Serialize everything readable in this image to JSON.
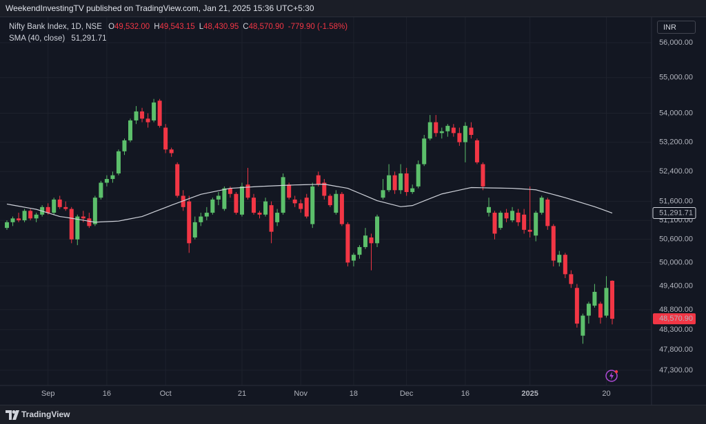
{
  "header": {
    "publisher": "WeekendInvestingTV published on TradingView.com, Jan 21, 2025 15:36 UTC+5:30"
  },
  "legend": {
    "fields": [
      {
        "key": "O",
        "value": "49,532.00"
      },
      {
        "key": "H",
        "value": "49,543.15"
      },
      {
        "key": "L",
        "value": "48,430.95"
      },
      {
        "key": "C",
        "value": "48,570.90"
      }
    ],
    "change": "-779.90 (-1.58%)"
  },
  "currency": "INR",
  "footer": {
    "brand": "TradingView"
  },
  "chart_data": {
    "type": "candlestick",
    "categories": [
      null,
      null,
      null,
      null,
      null,
      null,
      null,
      "Sep",
      null,
      null,
      null,
      null,
      null,
      null,
      null,
      null,
      null,
      "16",
      null,
      null,
      null,
      null,
      null,
      null,
      null,
      null,
      null,
      "Oct",
      null,
      null,
      null,
      null,
      null,
      null,
      null,
      null,
      null,
      null,
      null,
      null,
      "21",
      null,
      null,
      null,
      null,
      null,
      null,
      null,
      null,
      null,
      "Nov",
      null,
      null,
      null,
      null,
      null,
      null,
      null,
      null,
      "18",
      null,
      null,
      null,
      null,
      null,
      null,
      null,
      null,
      "Dec",
      null,
      null,
      null,
      null,
      null,
      null,
      null,
      null,
      null,
      "16",
      null,
      null,
      null,
      null,
      null,
      null,
      null,
      null,
      null,
      null,
      "2025",
      null,
      null,
      null,
      null,
      null,
      null,
      null,
      null,
      null,
      null,
      null,
      null,
      "20",
      null
    ],
    "series": [
      {
        "name": "Nifty Bank Index, 1D, NSE",
        "up_color": "#5cbf6b",
        "down_color": "#f23645",
        "last_label": "48,570.90",
        "open": [
          50900,
          51050,
          51150,
          51100,
          51350,
          51150,
          51250,
          51450,
          51300,
          51650,
          51450,
          51400,
          50600,
          51200,
          51150,
          51000,
          51700,
          52100,
          52200,
          52350,
          52950,
          53250,
          53800,
          54050,
          53850,
          53800,
          54350,
          53600,
          53000,
          52600,
          51750,
          51600,
          50650,
          51050,
          51200,
          51300,
          51650,
          51400,
          51950,
          51800,
          51250,
          52050,
          51700,
          51300,
          51250,
          51500,
          51050,
          51300,
          52050,
          51650,
          51550,
          51700,
          51000,
          52300,
          52100,
          51750,
          51300,
          51800,
          51000,
          50050,
          50200,
          50400,
          50650,
          50500,
          51700,
          51900,
          52300,
          51900,
          52350,
          51850,
          52000,
          52600,
          53300,
          53750,
          53450,
          53500,
          53600,
          53450,
          53200,
          53600,
          53250,
          52600,
          51300,
          51300,
          50900,
          51300,
          51100,
          51300,
          51250,
          50850,
          50700,
          51300,
          51650,
          50950,
          50000,
          50200,
          49700,
          49350,
          48150,
          48650,
          48900,
          48950,
          48650,
          49532
        ],
        "high": [
          51100,
          51200,
          51300,
          51400,
          51400,
          51300,
          51500,
          51550,
          51700,
          51750,
          51600,
          51450,
          51250,
          51350,
          51300,
          51750,
          52150,
          52300,
          52400,
          53000,
          53300,
          53850,
          54200,
          54150,
          54000,
          54400,
          54400,
          53700,
          53050,
          52650,
          51900,
          51750,
          51200,
          51300,
          51450,
          51700,
          51850,
          52000,
          52000,
          51850,
          52100,
          52500,
          51800,
          51350,
          51700,
          51600,
          51400,
          52350,
          52100,
          51750,
          51650,
          51800,
          52100,
          52400,
          52200,
          51800,
          51900,
          51850,
          51050,
          50250,
          50450,
          50900,
          50750,
          51250,
          52200,
          52600,
          52400,
          52600,
          52500,
          52050,
          52700,
          53400,
          53950,
          53950,
          53600,
          53700,
          53700,
          53600,
          53750,
          53750,
          53300,
          52650,
          51700,
          51350,
          51350,
          51400,
          51450,
          51400,
          51400,
          52000,
          51350,
          51750,
          51700,
          51000,
          50300,
          50250,
          49800,
          49450,
          48700,
          49000,
          49450,
          49000,
          49650,
          49543.15
        ],
        "low": [
          50850,
          50950,
          51050,
          51050,
          51100,
          51050,
          51200,
          51250,
          51250,
          51400,
          51350,
          50500,
          50450,
          51050,
          50900,
          50950,
          51650,
          52000,
          52100,
          52300,
          52850,
          53200,
          53700,
          53750,
          53600,
          53750,
          53600,
          52900,
          52800,
          51700,
          51350,
          50250,
          50600,
          50950,
          51100,
          51250,
          51500,
          51350,
          51700,
          51250,
          51200,
          51650,
          51250,
          51150,
          51200,
          50500,
          50950,
          51250,
          51650,
          51450,
          51300,
          51150,
          50900,
          52000,
          51650,
          51450,
          51250,
          50950,
          49900,
          49900,
          50100,
          50350,
          49800,
          50400,
          51650,
          51850,
          51800,
          51800,
          51750,
          51800,
          51950,
          52550,
          53250,
          53350,
          53300,
          53350,
          53350,
          53100,
          52650,
          53300,
          52600,
          51900,
          51200,
          50600,
          50850,
          51050,
          51050,
          50950,
          50750,
          50650,
          50550,
          51250,
          50850,
          49900,
          49900,
          49600,
          49350,
          48350,
          47950,
          48450,
          48850,
          48450,
          48600,
          48430.95
        ],
        "close": [
          51050,
          51150,
          51100,
          51350,
          51150,
          51250,
          51450,
          51300,
          51650,
          51450,
          51400,
          50600,
          51200,
          51150,
          50950,
          51700,
          52100,
          52200,
          52300,
          52950,
          53250,
          53800,
          54050,
          53850,
          53750,
          54300,
          53650,
          53000,
          52900,
          51750,
          51450,
          50500,
          51050,
          51200,
          51300,
          51650,
          51750,
          51950,
          51800,
          51300,
          52000,
          51700,
          51300,
          51250,
          51600,
          50800,
          51300,
          52250,
          51700,
          51550,
          51400,
          51200,
          52000,
          52050,
          51750,
          51500,
          51800,
          51000,
          50000,
          50200,
          50400,
          50700,
          50500,
          51200,
          51900,
          52300,
          51900,
          52350,
          51850,
          51950,
          52600,
          53300,
          53750,
          53450,
          53500,
          53650,
          53450,
          53200,
          53650,
          53400,
          52650,
          52000,
          51450,
          50750,
          51300,
          51150,
          51350,
          51050,
          50850,
          50800,
          51300,
          51700,
          50950,
          50050,
          50200,
          49700,
          49450,
          48450,
          48650,
          48950,
          49250,
          48600,
          49350,
          48570.9
        ]
      },
      {
        "name": "SMA (40, close)",
        "type": "line",
        "color": "#d1d4dc",
        "last_label": "51,291.71",
        "values": [
          51530,
          51502,
          51474,
          51446,
          51418,
          51390,
          51343,
          51295,
          51248,
          51200,
          51180,
          51154,
          51128,
          51102,
          51076,
          51050,
          51058,
          51065,
          51072,
          51080,
          51110,
          51140,
          51170,
          51200,
          51260,
          51320,
          51380,
          51440,
          51500,
          51558,
          51616,
          51674,
          51732,
          51790,
          51822,
          51854,
          51886,
          51918,
          51950,
          51960,
          51970,
          51980,
          51990,
          52000,
          52007,
          52013,
          52020,
          52027,
          52033,
          52040,
          52044,
          52048,
          52052,
          52056,
          52060,
          52032,
          52005,
          51978,
          51950,
          51884,
          51818,
          51752,
          51686,
          51620,
          51580,
          51540,
          51500,
          51460,
          51475,
          51490,
          51552,
          51614,
          51676,
          51738,
          51800,
          51834,
          51868,
          51902,
          51936,
          51970,
          51967,
          51964,
          51961,
          51959,
          51956,
          51953,
          51950,
          51940,
          51930,
          51920,
          51910,
          51868,
          51826,
          51784,
          51742,
          51700,
          51652,
          51604,
          51556,
          51508,
          51460,
          51404,
          51348,
          51291.71
        ]
      }
    ],
    "ylim": [
      46930,
      56740
    ],
    "yticks": [
      {
        "value": 56000,
        "label": "56,000.00"
      },
      {
        "value": 55000,
        "label": "55,000.00"
      },
      {
        "value": 54000,
        "label": "54,000.00"
      },
      {
        "value": 53200,
        "label": "53,200.00"
      },
      {
        "value": 52400,
        "label": "52,400.00"
      },
      {
        "value": 51600,
        "label": "51,600.00"
      },
      {
        "value": 51100,
        "label": "51,100.00"
      },
      {
        "value": 50600,
        "label": "50,600.00"
      },
      {
        "value": 50000,
        "label": "50,000.00"
      },
      {
        "value": 49400,
        "label": "49,400.00"
      },
      {
        "value": 48800,
        "label": "48,800.00"
      },
      {
        "value": 48300,
        "label": "48,300.00"
      },
      {
        "value": 47800,
        "label": "47,800.00"
      },
      {
        "value": 47300,
        "label": "47,300.00"
      }
    ],
    "log_scale": true,
    "grid": true
  }
}
